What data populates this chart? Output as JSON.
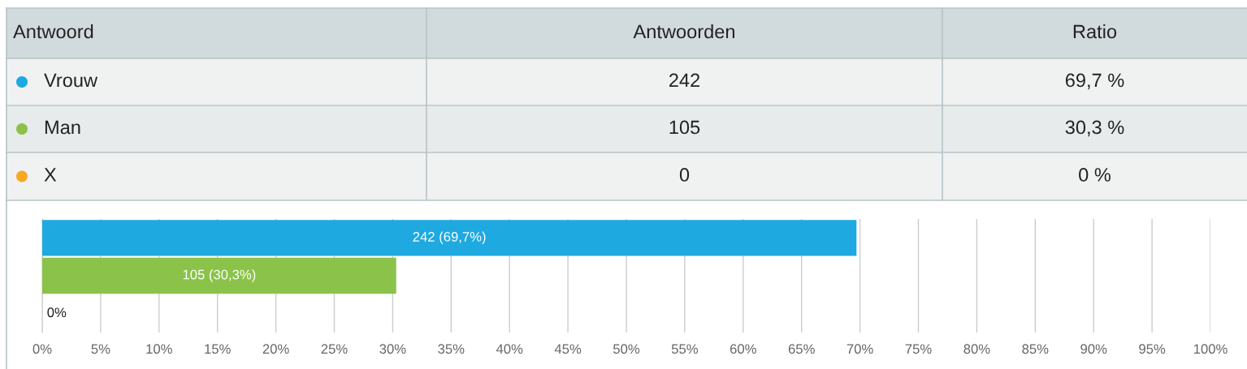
{
  "chart_data": {
    "type": "bar",
    "orientation": "horizontal",
    "categories": [
      null,
      null,
      null
    ],
    "values": [
      69.7,
      30.3,
      0
    ],
    "colors": [
      "#1fa9e1",
      "#8bc34a",
      "#f9a825"
    ],
    "value_labels": [
      "242 (69,7%)",
      "105 (30,3%)",
      "0%"
    ],
    "xlim": [
      0,
      100
    ],
    "xticks": [
      {
        "value": 0,
        "label": "0%"
      },
      {
        "value": 5,
        "label": "5%"
      },
      {
        "value": 10,
        "label": "10%"
      },
      {
        "value": 15,
        "label": "15%"
      },
      {
        "value": 20,
        "label": "20%"
      },
      {
        "value": 25,
        "label": "25%"
      },
      {
        "value": 30,
        "label": "30%"
      },
      {
        "value": 35,
        "label": "35%"
      },
      {
        "value": 40,
        "label": "40%"
      },
      {
        "value": 45,
        "label": "45%"
      },
      {
        "value": 50,
        "label": "50%"
      },
      {
        "value": 55,
        "label": "55%"
      },
      {
        "value": 60,
        "label": "60%"
      },
      {
        "value": 65,
        "label": "65%"
      },
      {
        "value": 70,
        "label": "70%"
      },
      {
        "value": 75,
        "label": "75%"
      },
      {
        "value": 80,
        "label": "80%"
      },
      {
        "value": 85,
        "label": "85%"
      },
      {
        "value": 90,
        "label": "90%"
      },
      {
        "value": 95,
        "label": "95%"
      },
      {
        "value": 100,
        "label": "100%"
      }
    ],
    "grid": "x",
    "tick_labels": "x",
    "annotations": [
      "Antwoord",
      "Antwoorden",
      "Ratio",
      "Vrouw",
      "242",
      "69,7 %",
      "Man",
      "105",
      "30,3 %",
      "X",
      "0",
      "0 %"
    ]
  }
}
